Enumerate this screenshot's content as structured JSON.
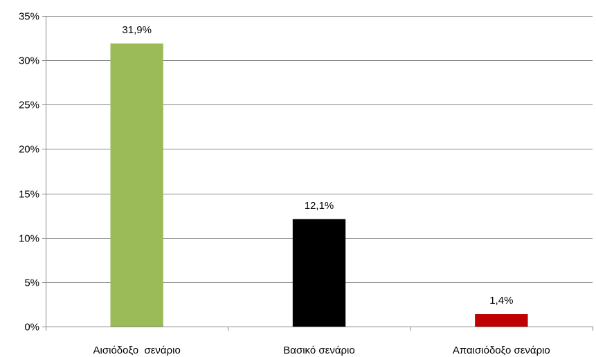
{
  "chart_data": {
    "type": "bar",
    "categories": [
      "Αισιόδοξο  σενάριο",
      "Βασικό σενάριο",
      "Απαισιόδοξο σενάριο"
    ],
    "values": [
      31.9,
      12.1,
      1.4
    ],
    "data_labels": [
      "31,9%",
      "12,1%",
      "1,4%"
    ],
    "colors": [
      "#9BBB59",
      "#000000",
      "#C00000"
    ],
    "ylim": [
      0,
      35
    ],
    "yticks": [
      0,
      5,
      10,
      15,
      20,
      25,
      30,
      35
    ],
    "ytick_labels": [
      "0%",
      "5%",
      "10%",
      "15%",
      "20%",
      "25%",
      "30%",
      "35%"
    ],
    "grid": true,
    "legend": "none"
  }
}
